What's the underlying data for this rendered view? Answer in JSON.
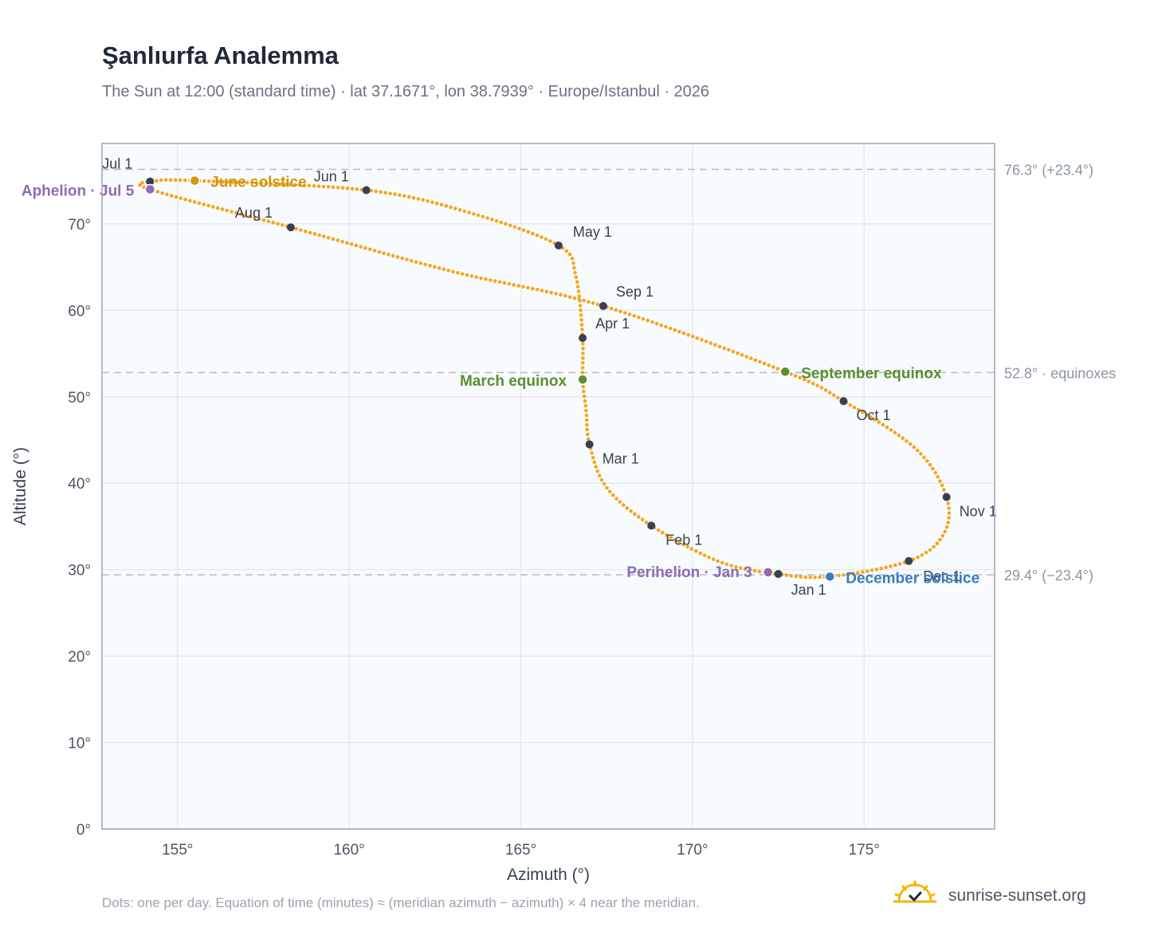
{
  "title": "Şanlıurfa Analemma",
  "subtitle": "The Sun at 12:00 (standard time) · lat 37.1671°, lon 38.7939° · Europe/Istanbul · 2026",
  "footer_note": "Dots: one per day. Equation of time (minutes) ≈ (meridian azimuth − azimuth) × 4 near the meridian.",
  "brand": {
    "name": "sunrise-sunset.org",
    "logo_icon": "sun-check-icon"
  },
  "colors": {
    "curve": "#f5a623",
    "month_marker": "#374151",
    "solstice_june": "#d4960a",
    "solstice_december": "#3b7bbf",
    "equinox": "#5a8f2e",
    "apsis": "#8e6bb5",
    "reference_line": "#b0bcc8",
    "plot_bg": "#f8fbfe",
    "grid": "#e4eaf1",
    "frame": "#9aa6b4"
  },
  "chart_data": {
    "type": "scatter",
    "xlabel": "Azimuth (°)",
    "ylabel": "Altitude (°)",
    "xlim": [
      152.8,
      178.8
    ],
    "ylim": [
      0,
      79.3
    ],
    "x_ticks": [
      155,
      160,
      165,
      170,
      175
    ],
    "y_ticks": [
      0,
      10,
      20,
      30,
      40,
      50,
      60,
      70
    ],
    "x_tick_labels": [
      "155°",
      "160°",
      "165°",
      "170°",
      "175°"
    ],
    "y_tick_labels": [
      "0°",
      "10°",
      "20°",
      "30°",
      "40°",
      "50°",
      "60°",
      "70°"
    ],
    "grid": true,
    "reference_lines": [
      {
        "y": 76.3,
        "label": "76.3° (+23.4°)"
      },
      {
        "y": 52.8,
        "label": "52.8° · equinoxes"
      },
      {
        "y": 29.4,
        "label": "29.4° (−23.4°)"
      }
    ],
    "daily_path": [
      [
        172.5,
        29.5
      ],
      [
        170.8,
        30.9
      ],
      [
        168.8,
        35.1
      ],
      [
        167.5,
        39.5
      ],
      [
        167.0,
        44.5
      ],
      [
        166.9,
        48.5
      ],
      [
        166.8,
        52.0
      ],
      [
        166.8,
        56.8
      ],
      [
        166.6,
        64.0
      ],
      [
        166.1,
        67.5
      ],
      [
        163.5,
        71.3
      ],
      [
        160.5,
        73.9
      ],
      [
        155.5,
        75.0
      ],
      [
        154.3,
        74.9
      ],
      [
        154.2,
        74.0
      ],
      [
        158.3,
        69.6
      ],
      [
        163.0,
        64.5
      ],
      [
        167.4,
        60.5
      ],
      [
        172.7,
        52.9
      ],
      [
        174.4,
        49.5
      ],
      [
        176.5,
        44.0
      ],
      [
        177.4,
        38.4
      ],
      [
        177.3,
        34.0
      ],
      [
        176.3,
        31.0
      ],
      [
        174.0,
        29.2
      ],
      [
        172.5,
        29.5
      ]
    ],
    "month_markers": [
      {
        "label": "Jan 1",
        "x": 172.5,
        "y": 29.5
      },
      {
        "label": "Feb 1",
        "x": 168.8,
        "y": 35.1
      },
      {
        "label": "Mar 1",
        "x": 167.0,
        "y": 44.5
      },
      {
        "label": "Apr 1",
        "x": 166.8,
        "y": 56.8
      },
      {
        "label": "May 1",
        "x": 166.1,
        "y": 67.5
      },
      {
        "label": "Jun 1",
        "x": 160.5,
        "y": 73.9
      },
      {
        "label": "Jul 1",
        "x": 154.2,
        "y": 74.9
      },
      {
        "label": "Aug 1",
        "x": 158.3,
        "y": 69.6
      },
      {
        "label": "Sep 1",
        "x": 167.4,
        "y": 60.5
      },
      {
        "label": "Oct 1",
        "x": 174.4,
        "y": 49.5
      },
      {
        "label": "Nov 1",
        "x": 177.4,
        "y": 38.4
      },
      {
        "label": "Dec 1",
        "x": 176.3,
        "y": 31.0
      }
    ],
    "events": [
      {
        "label": "June solstice",
        "x": 155.5,
        "y": 75.0,
        "kind": "solstice_june"
      },
      {
        "label": "December solstice",
        "x": 174.0,
        "y": 29.2,
        "kind": "solstice_december"
      },
      {
        "label": "March equinox",
        "x": 166.8,
        "y": 52.0,
        "kind": "equinox"
      },
      {
        "label": "September equinox",
        "x": 172.7,
        "y": 52.9,
        "kind": "equinox"
      },
      {
        "label": "Aphelion · Jul 5",
        "x": 154.2,
        "y": 74.0,
        "kind": "apsis"
      },
      {
        "label": "Perihelion · Jan 3",
        "x": 172.2,
        "y": 29.7,
        "kind": "apsis"
      }
    ]
  }
}
